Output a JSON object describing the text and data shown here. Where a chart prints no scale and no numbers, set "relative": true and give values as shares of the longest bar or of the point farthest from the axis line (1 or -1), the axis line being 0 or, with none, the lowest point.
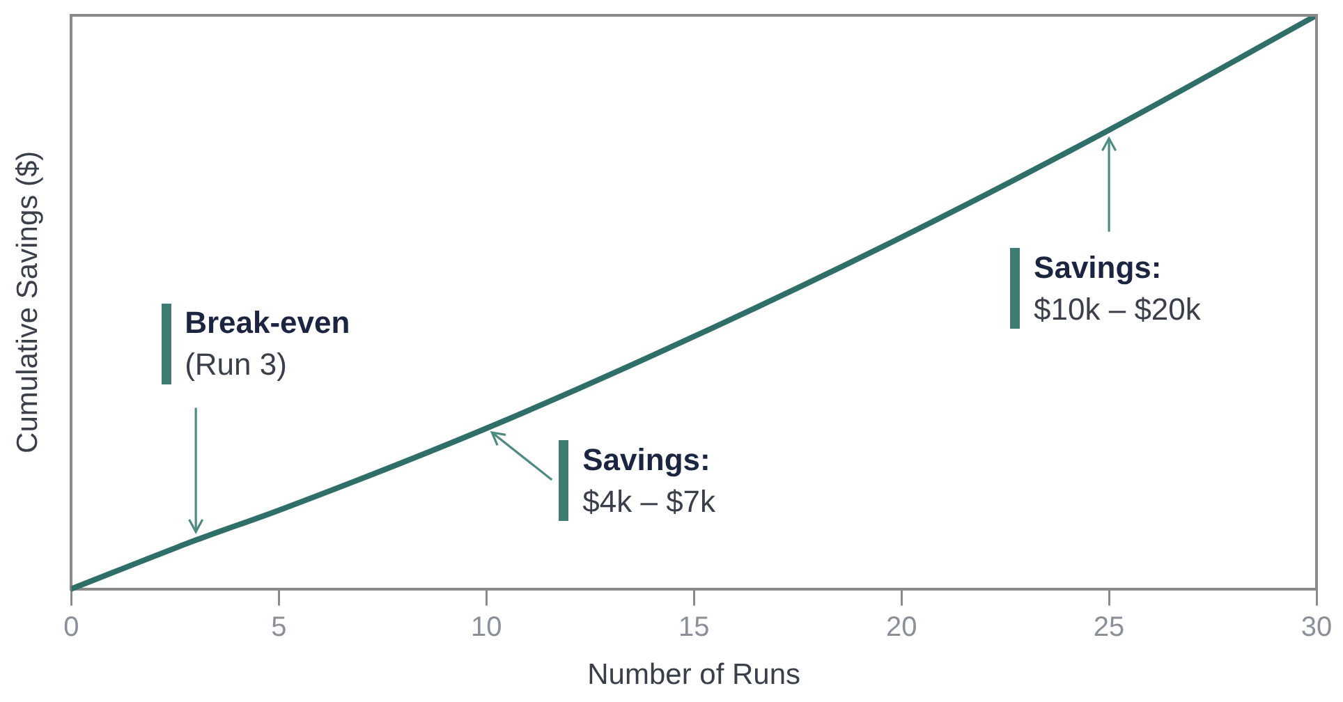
{
  "chart_data": {
    "type": "line",
    "xlabel": "Number of Runs",
    "ylabel": "Cumulative Savings ($)",
    "relative": true,
    "x": [
      0,
      3,
      5,
      10,
      15,
      20,
      25,
      30
    ],
    "series": [
      {
        "color": "#2f6f68",
        "values": [
          0,
          0.085,
          0.137,
          0.28,
          0.44,
          0.613,
          0.8,
          1
        ]
      }
    ],
    "xlim": [
      0,
      30
    ],
    "xticks": [
      0,
      5,
      10,
      15,
      20,
      25,
      30
    ],
    "grid": false,
    "legend": false,
    "marker": "none",
    "line_style": "solid",
    "annotations": [
      {
        "text": "Break-even\n(Run 3)",
        "x": 3,
        "y": 0.085
      },
      {
        "text": "Savings:\n$4k – $7k",
        "x": 10,
        "y": 0.28
      },
      {
        "text": "Savings:\n$10k – $20k",
        "x": 25,
        "y": 0.8
      }
    ]
  }
}
